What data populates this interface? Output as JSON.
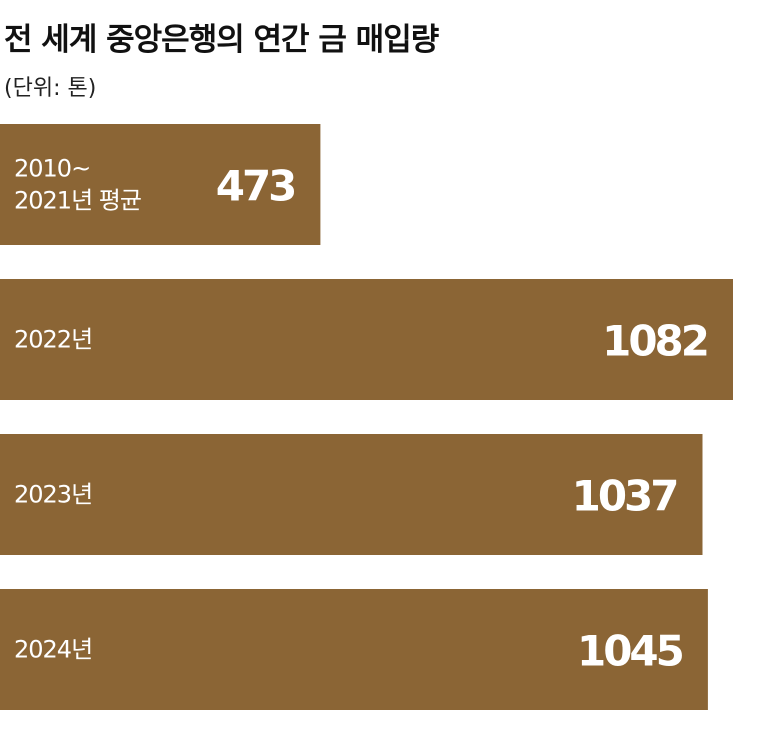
{
  "chart_data": {
    "type": "bar",
    "orientation": "horizontal",
    "title": "전 세계 중앙은행의 연간 금 매입량",
    "unit": "(단위: 톤)",
    "categories": [
      [
        "2010~",
        "2021년 평균"
      ],
      [
        "2022년"
      ],
      [
        "2023년"
      ],
      [
        "2024년"
      ]
    ],
    "values": [
      473,
      1082,
      1037,
      1045
    ],
    "bar_color": "#8b6535",
    "label_color": "#ffffff",
    "grid": false,
    "legend": "none"
  }
}
